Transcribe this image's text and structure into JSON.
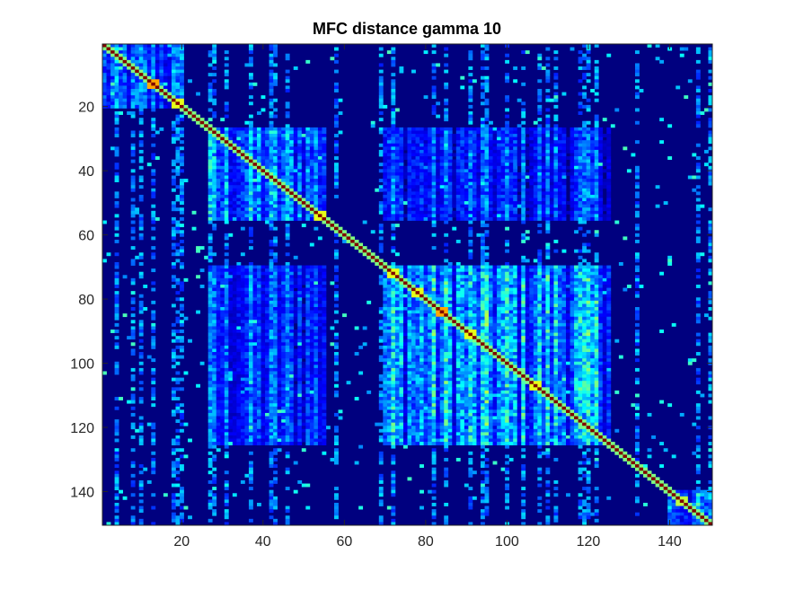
{
  "chart_data": {
    "type": "heatmap",
    "title": "MFC distance gamma 10",
    "xlabel": "",
    "ylabel": "",
    "n": 150,
    "xlim": [
      0.5,
      150.5
    ],
    "ylim": [
      0.5,
      150.5
    ],
    "y_direction": "reversed",
    "x_ticks": [
      20,
      40,
      60,
      80,
      100,
      120,
      140
    ],
    "y_ticks": [
      20,
      40,
      60,
      80,
      100,
      120,
      140
    ],
    "colormap": "jet",
    "color_range": [
      0,
      1
    ],
    "diagonal_value": 1.0,
    "grid": false,
    "colorbar": false,
    "blocks": [
      {
        "rows": [
          1,
          20
        ],
        "cols": [
          1,
          20
        ],
        "level": 0.25
      },
      {
        "rows": [
          27,
          55
        ],
        "cols": [
          27,
          55
        ],
        "level": 0.3
      },
      {
        "rows": [
          70,
          125
        ],
        "cols": [
          70,
          125
        ],
        "level": 0.35
      },
      {
        "rows": [
          27,
          55
        ],
        "cols": [
          70,
          125
        ],
        "level": 0.2
      },
      {
        "rows": [
          70,
          125
        ],
        "cols": [
          27,
          55
        ],
        "level": 0.22
      },
      {
        "rows": [
          140,
          150
        ],
        "cols": [
          140,
          150
        ],
        "level": 0.3
      }
    ],
    "hotspots": [
      {
        "row": 13,
        "col": 13,
        "value": 0.95
      },
      {
        "row": 19,
        "col": 19,
        "value": 0.8
      },
      {
        "row": 54,
        "col": 54,
        "value": 0.8
      },
      {
        "row": 72,
        "col": 72,
        "value": 0.8
      },
      {
        "row": 78,
        "col": 78,
        "value": 0.8
      },
      {
        "row": 84,
        "col": 84,
        "value": 0.95
      },
      {
        "row": 91,
        "col": 91,
        "value": 0.8
      },
      {
        "row": 107,
        "col": 107,
        "value": 0.8
      },
      {
        "row": 143,
        "col": 143,
        "value": 0.75
      }
    ],
    "colors": {
      "background": "#00007F",
      "axes_border": "#262626",
      "figure_background": "#FFFFFF"
    }
  }
}
